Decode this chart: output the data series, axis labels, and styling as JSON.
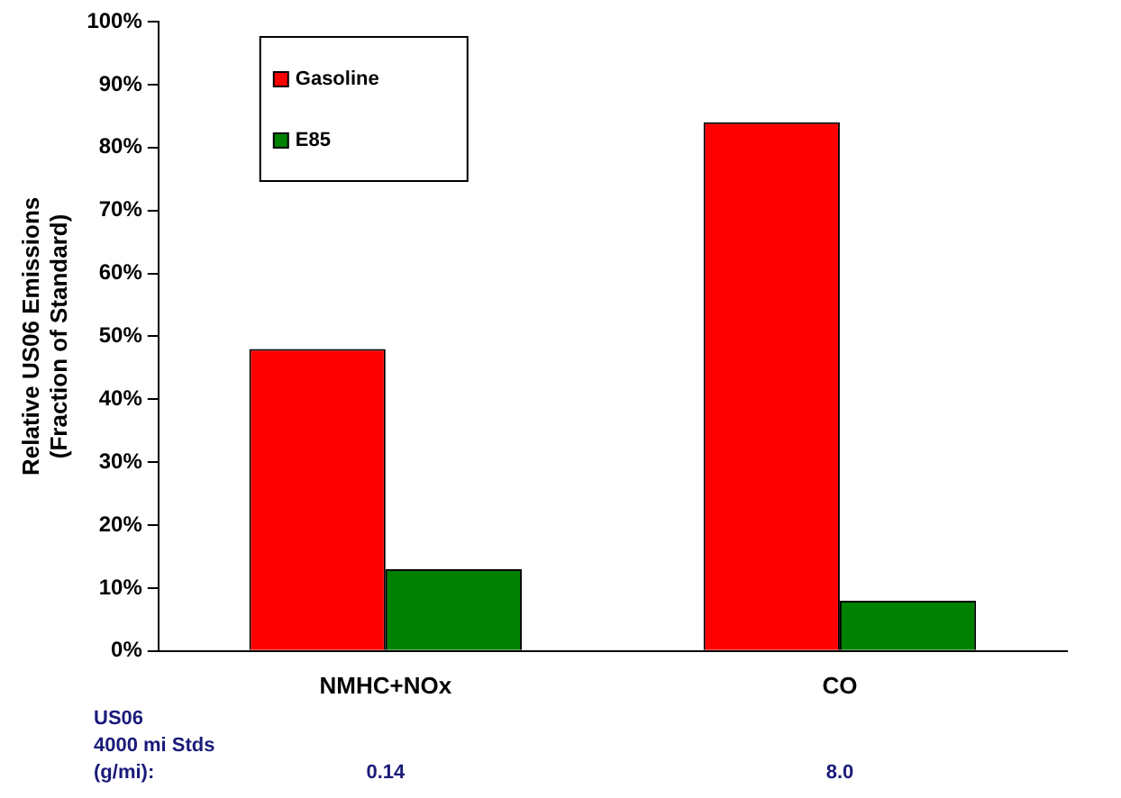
{
  "chart_data": {
    "type": "bar",
    "ylabel": "Relative US06 Emissions\n(Fraction of Standard)",
    "categories": [
      "NMHC+NOx",
      "CO"
    ],
    "series": [
      {
        "name": "Gasoline",
        "color": "#ff0000",
        "values": [
          48,
          84
        ]
      },
      {
        "name": "E85",
        "color": "#008000",
        "values": [
          13,
          8
        ]
      }
    ],
    "ylim": [
      0,
      100
    ],
    "yticks": [
      {
        "value": 0,
        "label": "0%"
      },
      {
        "value": 10,
        "label": "10%"
      },
      {
        "value": 20,
        "label": "20%"
      },
      {
        "value": 30,
        "label": "30%"
      },
      {
        "value": 40,
        "label": "40%"
      },
      {
        "value": 50,
        "label": "50%"
      },
      {
        "value": 60,
        "label": "60%"
      },
      {
        "value": 70,
        "label": "70%"
      },
      {
        "value": 80,
        "label": "80%"
      },
      {
        "value": 90,
        "label": "90%"
      },
      {
        "value": 100,
        "label": "100%"
      }
    ],
    "grid": false,
    "legend": "top left",
    "annotations": [
      "US06\n4000 mi Stds\n(g/mi):",
      "0.14",
      "8.0"
    ]
  }
}
